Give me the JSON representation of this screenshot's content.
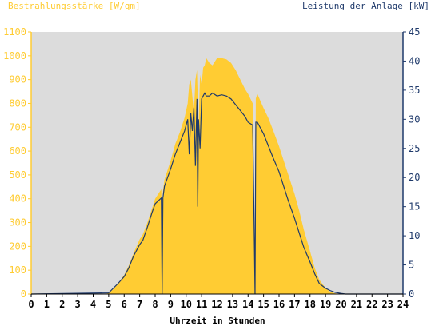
{
  "chart_data": {
    "type": "area",
    "left_axis_title": "Bestrahlungsstärke [W/qm]",
    "right_axis_title": "Leistung der Anlage [kW]",
    "xlabel": "Uhrzeit in Stunden",
    "x_range": [
      0,
      24
    ],
    "y_left_range": [
      0,
      1100
    ],
    "y_right_range": [
      0,
      45
    ],
    "x_ticks": [
      "0",
      "1",
      "2",
      "3",
      "4",
      "5",
      "6",
      "7",
      "8",
      "9",
      "10",
      "11",
      "12",
      "13",
      "14",
      "15",
      "16",
      "17",
      "18",
      "19",
      "20",
      "21",
      "22",
      "23",
      "24"
    ],
    "y_left_ticks": [
      "0",
      "100",
      "200",
      "300",
      "400",
      "500",
      "600",
      "700",
      "800",
      "900",
      "1000",
      "1100"
    ],
    "y_right_ticks": [
      "0",
      "5",
      "10",
      "15",
      "20",
      "25",
      "30",
      "35",
      "40",
      "45"
    ],
    "grid": false,
    "colors": {
      "irradiance_fill": "#ffcc33",
      "power_line": "#1f3a6b",
      "plot_background": "#dcdcdc",
      "left_axis": "#ffcc33",
      "right_axis": "#1f3a6b"
    },
    "series": [
      {
        "name": "Bestrahlungsstärke [W/qm]",
        "axis": "left",
        "kind": "area",
        "x": [
          0,
          4.8,
          5.0,
          5.3,
          5.6,
          6.0,
          6.3,
          6.6,
          7.0,
          7.2,
          7.5,
          7.8,
          8.0,
          8.4,
          8.45,
          8.5,
          8.6,
          9.0,
          9.3,
          9.6,
          9.9,
          10.1,
          10.2,
          10.3,
          10.5,
          10.6,
          10.7,
          10.8,
          10.9,
          11.0,
          11.1,
          11.2,
          11.3,
          11.5,
          11.7,
          12.0,
          12.3,
          12.6,
          12.9,
          13.2,
          13.5,
          13.8,
          14.0,
          14.3,
          14.45,
          14.5,
          14.6,
          14.8,
          15.0,
          15.3,
          15.6,
          16.0,
          16.3,
          16.6,
          17.0,
          17.3,
          17.6,
          18.0,
          18.3,
          18.6,
          19.0,
          19.3,
          19.6,
          20.0,
          20.3,
          24
        ],
        "y": [
          0,
          0,
          5,
          20,
          45,
          80,
          120,
          170,
          230,
          250,
          300,
          360,
          400,
          440,
          0,
          430,
          480,
          560,
          630,
          680,
          740,
          800,
          880,
          900,
          760,
          900,
          940,
          700,
          920,
          880,
          950,
          960,
          990,
          970,
          960,
          990,
          990,
          985,
          970,
          940,
          900,
          860,
          840,
          800,
          0,
          820,
          840,
          810,
          780,
          740,
          690,
          620,
          560,
          500,
          420,
          350,
          270,
          180,
          110,
          60,
          25,
          10,
          3,
          0,
          0,
          0
        ]
      },
      {
        "name": "Leistung der Anlage [kW]",
        "axis": "right",
        "kind": "line",
        "x": [
          0,
          5.0,
          5.3,
          5.6,
          6.0,
          6.3,
          6.6,
          7.0,
          7.2,
          7.5,
          7.8,
          8.0,
          8.4,
          8.45,
          8.5,
          8.6,
          9.0,
          9.3,
          9.6,
          9.9,
          10.1,
          10.2,
          10.3,
          10.4,
          10.5,
          10.6,
          10.7,
          10.75,
          10.8,
          10.9,
          11.0,
          11.1,
          11.2,
          11.3,
          11.5,
          11.7,
          12.0,
          12.3,
          12.6,
          12.9,
          13.2,
          13.5,
          13.8,
          14.0,
          14.3,
          14.4,
          14.45,
          14.5,
          14.6,
          14.8,
          15.0,
          15.3,
          15.6,
          16.0,
          16.3,
          16.6,
          17.0,
          17.3,
          17.6,
          18.0,
          18.3,
          18.6,
          19.0,
          19.3,
          19.6,
          20.0,
          20.3,
          24
        ],
        "y": [
          0,
          0.2,
          1.0,
          1.8,
          3.0,
          4.5,
          6.5,
          8.5,
          9.2,
          11.5,
          14.0,
          15.5,
          16.5,
          0,
          16.5,
          18.5,
          21.5,
          24.0,
          26.0,
          28.0,
          30.0,
          24.0,
          31.0,
          28.0,
          32.0,
          22.0,
          33.5,
          15.0,
          30.0,
          25.0,
          33.5,
          34.0,
          34.5,
          34.0,
          34.0,
          34.5,
          34.0,
          34.2,
          34.0,
          33.5,
          32.5,
          31.5,
          30.5,
          29.5,
          29.0,
          10.0,
          0,
          29.5,
          29.5,
          28.5,
          27.5,
          25.5,
          23.5,
          21.0,
          18.5,
          16.0,
          13.0,
          10.5,
          8.0,
          5.5,
          3.5,
          1.8,
          1.0,
          0.6,
          0.3,
          0.1,
          0,
          0
        ]
      }
    ]
  }
}
